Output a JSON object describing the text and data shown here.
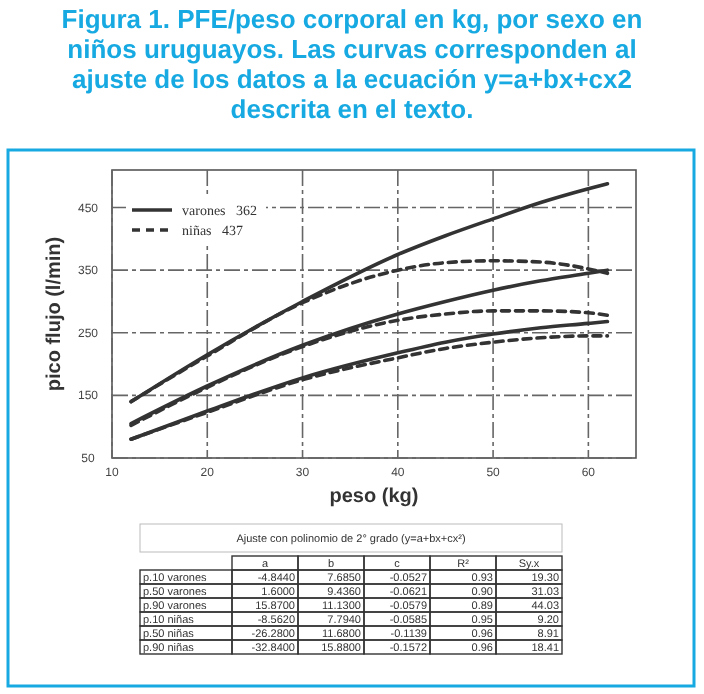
{
  "chart_data": [
    {
      "type": "line",
      "title": "Figura 1. PFE/peso corporal en kg, por sexo en niños uruguayos. Las curvas corresponden al ajuste de los datos a la ecuación y=a+bx+cx2 descrita en el texto.",
      "xlabel": "peso (kg)",
      "ylabel": "pico flujo (l/min)",
      "xlim": [
        10,
        65
      ],
      "xticks": [
        10,
        20,
        30,
        40,
        50,
        60
      ],
      "ylim": [
        50,
        510
      ],
      "yticks": [
        50,
        150,
        250,
        350,
        450
      ],
      "grid": true,
      "legend": "top left",
      "x": [
        12,
        20,
        30,
        40,
        45,
        50,
        55,
        60,
        62
      ],
      "series": [
        {
          "name": "varones   362",
          "color": "#333333",
          "line_style": "solid",
          "values": [
            140,
            215,
            300,
            375,
            405,
            432,
            458,
            480,
            488
          ]
        },
        {
          "color": "#333333",
          "line_style": "solid",
          "values": [
            105,
            165,
            230,
            280,
            300,
            318,
            333,
            345,
            350
          ]
        },
        {
          "color": "#333333",
          "line_style": "solid",
          "values": [
            80,
            125,
            178,
            218,
            235,
            248,
            258,
            265,
            268
          ]
        },
        {
          "name": "niñas   437",
          "color": "#333333",
          "line_style": "dashed",
          "values": [
            140,
            213,
            298,
            350,
            362,
            365,
            363,
            352,
            345
          ]
        },
        {
          "color": "#333333",
          "line_style": "dashed",
          "values": [
            102,
            163,
            228,
            270,
            280,
            285,
            285,
            282,
            278
          ]
        },
        {
          "color": "#333333",
          "line_style": "dashed",
          "values": [
            80,
            123,
            175,
            210,
            225,
            235,
            242,
            245,
            245
          ]
        }
      ]
    },
    {
      "type": "other",
      "title": "Ajuste con polinomio de 2° grado (y=a+bx+cx²)",
      "categories": [
        "a",
        "b",
        "c",
        "R²",
        "Sy.x"
      ],
      "y_categories": [
        "p.10 varones",
        "p.50 varones",
        "p.90 varones",
        "p.10 niñas",
        "p.50 niñas",
        "p.90 niñas"
      ],
      "cell_labels": [
        [
          "-4.8440",
          "7.6850",
          "-0.0527",
          "0.93",
          "19.30"
        ],
        [
          "1.6000",
          "9.4360",
          "-0.0621",
          "0.90",
          "31.03"
        ],
        [
          "15.8700",
          "11.1300",
          "-0.0579",
          "0.89",
          "44.03"
        ],
        [
          "-8.5620",
          "7.7940",
          "-0.0585",
          "0.95",
          "9.20"
        ],
        [
          "-26.2800",
          "11.6800",
          "-0.1139",
          "0.96",
          "8.91"
        ],
        [
          "-32.8400",
          "15.8800",
          "-0.1572",
          "0.96",
          "18.41"
        ]
      ]
    }
  ]
}
